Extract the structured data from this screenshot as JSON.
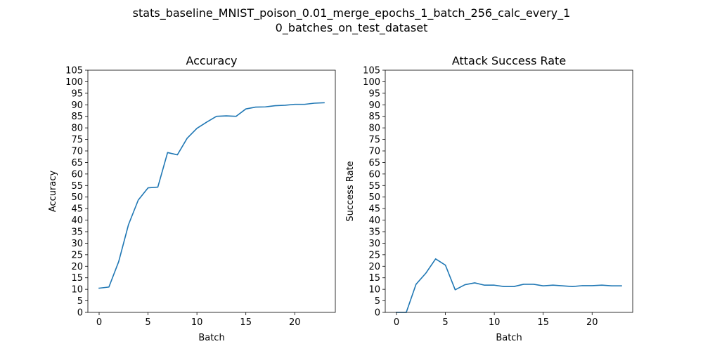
{
  "figure": {
    "suptitle_line1": "stats_baseline_MNIST_poison_0.01_merge_epochs_1_batch_256_calc_every_1",
    "suptitle_line2": "0_batches_on_test_dataset"
  },
  "chart_data": [
    {
      "type": "line",
      "title": "Accuracy",
      "xlabel": "Batch",
      "ylabel": "Accuracy",
      "xlim": [
        -1.15,
        24.15
      ],
      "ylim": [
        0,
        105
      ],
      "xticks": [
        0,
        5,
        10,
        15,
        20
      ],
      "yticks": [
        0,
        5,
        10,
        15,
        20,
        25,
        30,
        35,
        40,
        45,
        50,
        55,
        60,
        65,
        70,
        75,
        80,
        85,
        90,
        95,
        100,
        105
      ],
      "grid": false,
      "color": "#1f77b4",
      "x": [
        0,
        1,
        2,
        3,
        4,
        5,
        6,
        7,
        8,
        9,
        10,
        11,
        12,
        13,
        14,
        15,
        16,
        17,
        18,
        19,
        20,
        21,
        22,
        23
      ],
      "y": [
        10.5,
        11.0,
        22.0,
        38.0,
        48.7,
        54.0,
        54.3,
        69.3,
        68.3,
        75.5,
        79.8,
        82.5,
        85.0,
        85.2,
        85.0,
        88.2,
        89.0,
        89.1,
        89.6,
        89.8,
        90.2,
        90.2,
        90.7,
        90.9
      ]
    },
    {
      "type": "line",
      "title": "Attack Success Rate",
      "xlabel": "Batch",
      "ylabel": "Success Rate",
      "xlim": [
        -1.15,
        24.15
      ],
      "ylim": [
        0,
        105
      ],
      "xticks": [
        0,
        5,
        10,
        15,
        20
      ],
      "yticks": [
        0,
        5,
        10,
        15,
        20,
        25,
        30,
        35,
        40,
        45,
        50,
        55,
        60,
        65,
        70,
        75,
        80,
        85,
        90,
        95,
        100,
        105
      ],
      "grid": false,
      "color": "#1f77b4",
      "x": [
        0,
        1,
        2,
        3,
        4,
        5,
        6,
        7,
        8,
        9,
        10,
        11,
        12,
        13,
        14,
        15,
        16,
        17,
        18,
        19,
        20,
        21,
        22,
        23
      ],
      "y": [
        0.0,
        0.0,
        12.2,
        17.0,
        23.2,
        20.5,
        9.8,
        12.0,
        12.8,
        11.8,
        11.8,
        11.2,
        11.2,
        12.2,
        12.2,
        11.5,
        11.8,
        11.5,
        11.2,
        11.6,
        11.6,
        11.8,
        11.5,
        11.5
      ]
    }
  ]
}
